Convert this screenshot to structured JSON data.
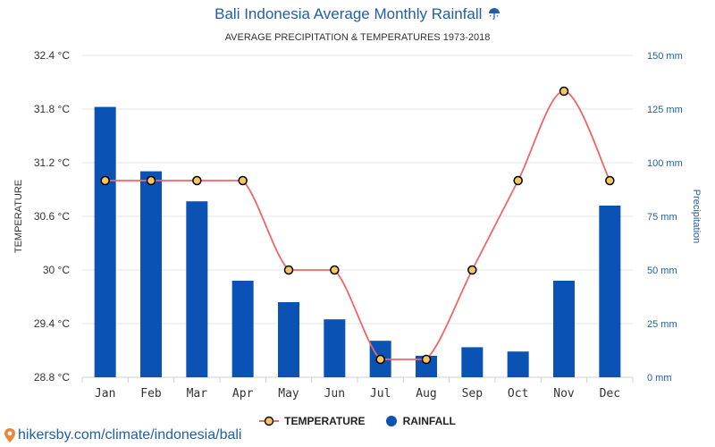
{
  "header": {
    "title": "Bali Indonesia Average Monthly Rainfall",
    "title_icon": "umbrella-icon",
    "subtitle": "AVERAGE PRECIPITATION & TEMPERATURES 1973-2018"
  },
  "footer": {
    "link_text": "hikersby.com/climate/indonesia/bali",
    "icon": "map-pin-icon"
  },
  "colors": {
    "rain": "#0a52b4",
    "temp_line": "#ee6666",
    "marker_fill": "#f7c562",
    "accent": "#1f5fa8"
  },
  "chart_data": {
    "type": "bar",
    "categories": [
      "Jan",
      "Feb",
      "Mar",
      "Apr",
      "May",
      "Jun",
      "Jul",
      "Aug",
      "Sep",
      "Oct",
      "Nov",
      "Dec"
    ],
    "series": [
      {
        "name": "TEMPERATURE",
        "type": "line",
        "axis": "left",
        "values": [
          31,
          31,
          31,
          31,
          30,
          30,
          29,
          29,
          30,
          31,
          32,
          31
        ]
      },
      {
        "name": "RAINFALL",
        "type": "bar",
        "axis": "right",
        "values": [
          126,
          96,
          82,
          45,
          35,
          27,
          17,
          10,
          14,
          12,
          45,
          80
        ]
      }
    ],
    "left_axis": {
      "label": "TEMPERATURE",
      "ylim": [
        28.8,
        32.4
      ],
      "ticks": [
        28.8,
        29.4,
        30,
        30.6,
        31.2,
        31.8,
        32.4
      ],
      "tick_labels": [
        "28.8 °C",
        "29.4 °C",
        "30 °C",
        "30.6 °C",
        "31.2 °C",
        "31.8 °C",
        "32.4 °C"
      ]
    },
    "right_axis": {
      "label": "Precipitation",
      "ylim": [
        0,
        150
      ],
      "ticks": [
        0,
        25,
        50,
        75,
        100,
        125,
        150
      ],
      "tick_labels": [
        "0 mm",
        "25 mm",
        "50 mm",
        "75 mm",
        "100 mm",
        "125 mm",
        "150 mm"
      ]
    },
    "grid": true,
    "legend": {
      "position": "bottom",
      "entries": [
        "TEMPERATURE",
        "RAINFALL"
      ]
    }
  }
}
